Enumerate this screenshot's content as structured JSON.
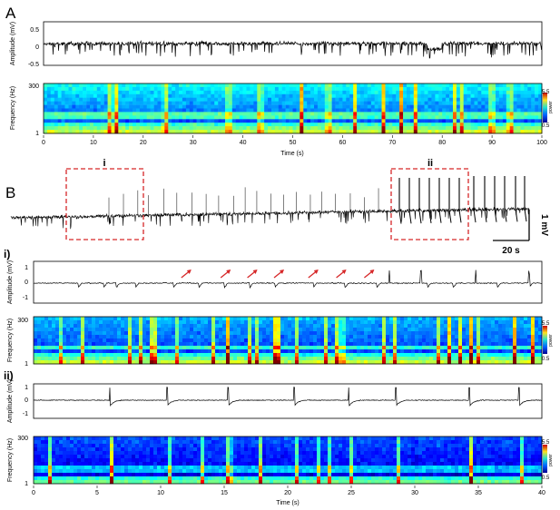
{
  "panel_labels": {
    "A": "A",
    "B": "B",
    "i": "i)",
    "ii": "ii)"
  },
  "box_labels": {
    "i": "i",
    "ii": "ii"
  },
  "scalebar": {
    "vertical": "1 mV",
    "horizontal": "20 s"
  },
  "colorbar": {
    "label": "power",
    "max": "5.5",
    "min": "0.5"
  },
  "colors": {
    "trace": "#000000",
    "highlight_box": "#d62728",
    "arrows": "#d62728"
  },
  "chart_data": [
    {
      "id": "A-trace",
      "type": "line",
      "ylabel": "Amplitude (mV)",
      "ylim": [
        -0.5,
        0.5
      ],
      "yticks": [
        "0.5",
        "0",
        "-0.5"
      ],
      "xlim": [
        0,
        100
      ]
    },
    {
      "id": "A-spectrogram",
      "type": "heatmap",
      "ylabel": "Frequency (Hz)",
      "yticks": [
        "300",
        "1"
      ],
      "xlabel": "Time (s)",
      "xlim": [
        0,
        100
      ],
      "xticks": [
        "0",
        "10",
        "20",
        "30",
        "40",
        "50",
        "60",
        "70",
        "80",
        "90",
        "100"
      ],
      "colorbar": {
        "label": "power",
        "range": [
          0.5,
          5.5
        ]
      }
    },
    {
      "id": "B-trace",
      "type": "line",
      "highlight_windows": [
        {
          "label": "i"
        },
        {
          "label": "ii"
        }
      ],
      "scalebars": {
        "amplitude": "1 mV",
        "time": "20 s"
      }
    },
    {
      "id": "Bi-trace",
      "type": "line",
      "ylabel": "Amplitude (mV)",
      "ylim": [
        -1,
        1
      ],
      "yticks": [
        "1",
        "0",
        "-1"
      ],
      "xlim": [
        0,
        40
      ],
      "annotated_events_s": [
        12.2,
        15.3,
        17.4,
        19.5,
        22.2,
        24.4,
        26.6
      ]
    },
    {
      "id": "Bi-spectrogram",
      "type": "heatmap",
      "ylabel": "Frequency (Hz)",
      "yticks": [
        "300",
        "1"
      ],
      "xlim": [
        0,
        40
      ],
      "colorbar": {
        "label": "power",
        "range": [
          0.5,
          5.5
        ]
      }
    },
    {
      "id": "Bii-trace",
      "type": "line",
      "ylabel": "Amplitude (mV)",
      "ylim": [
        -1,
        1
      ],
      "yticks": [
        "1",
        "0",
        "-1"
      ],
      "xlim": [
        0,
        40
      ],
      "spike_times_s": [
        6,
        10.5,
        15.3,
        20.5,
        24.8,
        28.5,
        34.3,
        38.2
      ]
    },
    {
      "id": "Bii-spectrogram",
      "type": "heatmap",
      "ylabel": "Frequency (Hz)",
      "yticks": [
        "300",
        "1"
      ],
      "xlabel": "Time (s)",
      "xlim": [
        0,
        40
      ],
      "xticks": [
        "0",
        "5",
        "10",
        "15",
        "20",
        "25",
        "30",
        "35",
        "40"
      ],
      "colorbar": {
        "label": "power",
        "range": [
          0.5,
          5.5
        ]
      }
    }
  ]
}
